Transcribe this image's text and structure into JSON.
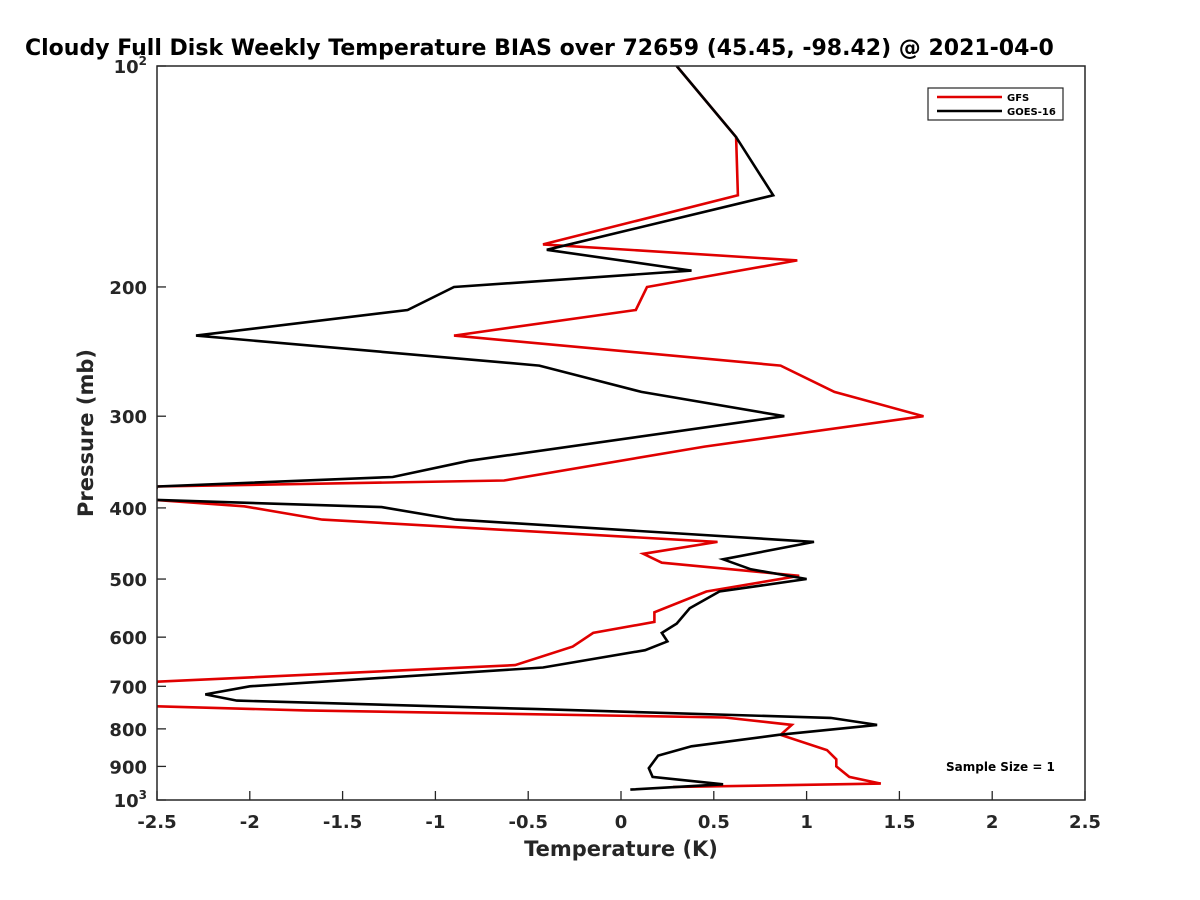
{
  "chart_data": {
    "type": "line",
    "title": "Cloudy Full Disk Weekly Temperature BIAS over 72659 (45.45, -98.42) @ 2021-04-0",
    "xlabel": "Temperature (K)",
    "ylabel": "Pressure (mb)",
    "xlim": [
      -2.5,
      2.5
    ],
    "ylim": [
      100,
      1000
    ],
    "y_scale": "log",
    "y_reversed": true,
    "x_ticks": [
      -2.5,
      -2,
      -1.5,
      -1,
      -0.5,
      0,
      0.5,
      1,
      1.5,
      2,
      2.5
    ],
    "x_tick_labels": [
      "-2.5",
      "-2",
      "-1.5",
      "-1",
      "-0.5",
      "0",
      "0.5",
      "1",
      "1.5",
      "2",
      "2.5"
    ],
    "y_ticks": [
      {
        "value": 100,
        "base": "10",
        "exp": "2"
      },
      {
        "value": 200,
        "label": "200"
      },
      {
        "value": 300,
        "label": "300"
      },
      {
        "value": 400,
        "label": "400"
      },
      {
        "value": 500,
        "label": "500"
      },
      {
        "value": 600,
        "label": "600"
      },
      {
        "value": 700,
        "label": "700"
      },
      {
        "value": 800,
        "label": "800"
      },
      {
        "value": 900,
        "label": "900"
      },
      {
        "value": 1000,
        "base": "10",
        "exp": "3"
      }
    ],
    "grid": false,
    "legend_position": "top-right",
    "annotation": "Sample Size = 1",
    "series": [
      {
        "name": "GFS",
        "color": "#e00000",
        "points": [
          [
            0.3,
            100
          ],
          [
            0.62,
            125
          ],
          [
            0.63,
            150
          ],
          [
            -0.42,
            175
          ],
          [
            0.95,
            184
          ],
          [
            0.14,
            200
          ],
          [
            0.08,
            215
          ],
          [
            -0.9,
            233
          ],
          [
            0.86,
            256
          ],
          [
            1.15,
            278
          ],
          [
            1.63,
            300
          ],
          [
            0.45,
            330
          ],
          [
            -0.63,
            367
          ],
          [
            -2.5,
            374
          ],
          [
            -2.52,
            390
          ],
          [
            -2.03,
            398
          ],
          [
            -1.61,
            415
          ],
          [
            0.52,
            445
          ],
          [
            0.12,
            462
          ],
          [
            0.22,
            475
          ],
          [
            0.96,
            495
          ],
          [
            0.46,
            520
          ],
          [
            0.18,
            555
          ],
          [
            0.18,
            572
          ],
          [
            -0.15,
            592
          ],
          [
            -0.26,
            618
          ],
          [
            -0.57,
            655
          ],
          [
            -2.5,
            690
          ],
          [
            -2.53,
            745
          ],
          [
            -1.7,
            755
          ],
          [
            0.56,
            772
          ],
          [
            0.92,
            790
          ],
          [
            0.86,
            815
          ],
          [
            1.11,
            855
          ],
          [
            1.16,
            880
          ],
          [
            1.16,
            900
          ],
          [
            1.23,
            930
          ],
          [
            1.4,
            950
          ],
          [
            0.28,
            960
          ]
        ]
      },
      {
        "name": "GOES-16",
        "color": "#000000",
        "points": [
          [
            0.3,
            100
          ],
          [
            0.62,
            125
          ],
          [
            0.82,
            150
          ],
          [
            -0.4,
            178
          ],
          [
            0.38,
            190
          ],
          [
            -0.9,
            200
          ],
          [
            -1.15,
            215
          ],
          [
            -2.29,
            233
          ],
          [
            -0.44,
            256
          ],
          [
            0.11,
            278
          ],
          [
            0.88,
            300
          ],
          [
            -0.82,
            345
          ],
          [
            -1.23,
            363
          ],
          [
            -2.5,
            374
          ],
          [
            -2.52,
            390
          ],
          [
            -1.29,
            399
          ],
          [
            -0.89,
            415
          ],
          [
            1.04,
            445
          ],
          [
            0.55,
            470
          ],
          [
            0.7,
            485
          ],
          [
            1.0,
            500
          ],
          [
            0.53,
            520
          ],
          [
            0.37,
            548
          ],
          [
            0.3,
            575
          ],
          [
            0.22,
            592
          ],
          [
            0.25,
            608
          ],
          [
            0.13,
            625
          ],
          [
            -0.42,
            660
          ],
          [
            -2.0,
            700
          ],
          [
            -2.24,
            718
          ],
          [
            -2.07,
            732
          ],
          [
            -0.45,
            752
          ],
          [
            1.13,
            773
          ],
          [
            1.38,
            790
          ],
          [
            0.85,
            815
          ],
          [
            0.38,
            845
          ],
          [
            0.2,
            870
          ],
          [
            0.15,
            905
          ],
          [
            0.17,
            930
          ],
          [
            0.55,
            952
          ],
          [
            0.05,
            968
          ]
        ]
      }
    ]
  }
}
